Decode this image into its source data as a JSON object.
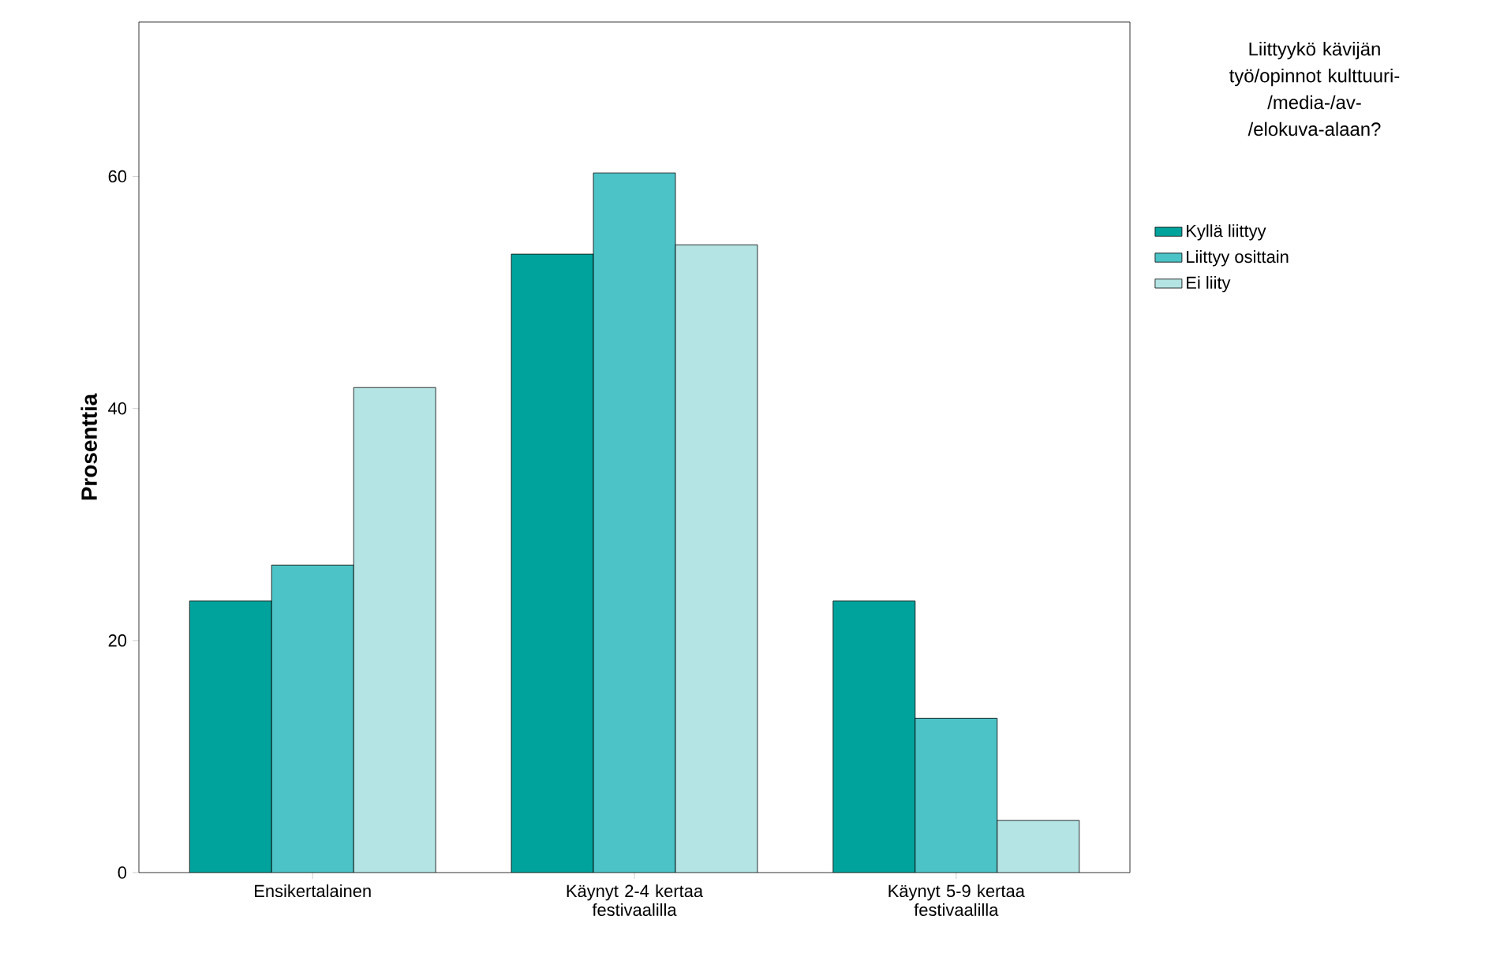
{
  "chart_data": {
    "type": "bar",
    "ylabel": "Prosenttia",
    "legend_title": "Liittyykö kävijän työ/opinnot kulttuuri-/media-/av-/elokuva-alaan?",
    "categories": [
      "Ensikertalainen",
      "Käynyt 2-4 kertaa festivaalilla",
      "Käynyt 5-9 kertaa festivaalilla"
    ],
    "series": [
      {
        "name": "Kyllä liittyy",
        "color": "#00a39c",
        "values": [
          23.4,
          53.3,
          23.4
        ]
      },
      {
        "name": "Liittyy osittain",
        "color": "#4cc3c6",
        "values": [
          26.5,
          60.3,
          13.3
        ]
      },
      {
        "name": "Ei liity",
        "color": "#b5e4e4",
        "values": [
          41.8,
          54.1,
          4.5
        ]
      }
    ],
    "ylim": [
      0,
      73.3
    ],
    "yticks": [
      0,
      20,
      40,
      60
    ],
    "grid": false,
    "legend": "right"
  }
}
